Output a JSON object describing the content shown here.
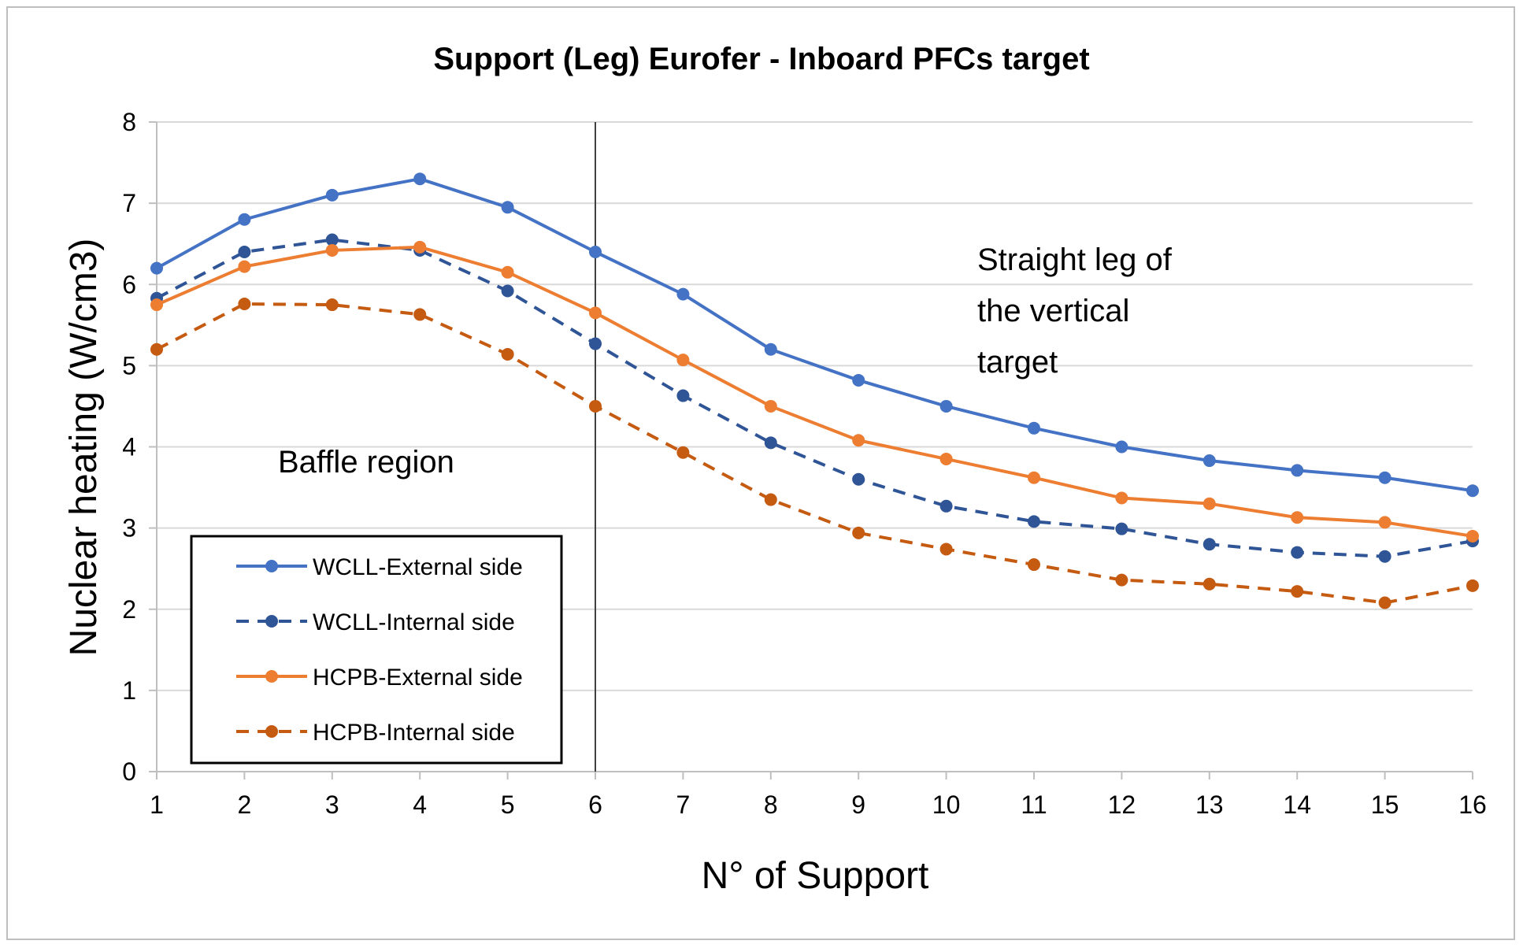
{
  "chart_data": {
    "type": "line",
    "title": "Support (Leg) Eurofer - Inboard PFCs target",
    "xlabel": "N° of Support",
    "ylabel": "Nuclear heating (W/cm3)",
    "x": [
      1,
      2,
      3,
      4,
      5,
      6,
      7,
      8,
      9,
      10,
      11,
      12,
      13,
      14,
      15,
      16
    ],
    "ylim": [
      0,
      8
    ],
    "yticks": [
      0,
      1,
      2,
      3,
      4,
      5,
      6,
      7,
      8
    ],
    "grid": "horizontal",
    "legend_position": "bottom-left",
    "series": [
      {
        "name": "WCLL-External side",
        "color": "#4472C4",
        "style": "solid",
        "values": [
          6.2,
          6.8,
          7.1,
          7.3,
          6.95,
          6.4,
          5.88,
          5.2,
          4.82,
          4.5,
          4.23,
          4.0,
          3.83,
          3.71,
          3.62,
          3.46
        ]
      },
      {
        "name": "WCLL-Internal side",
        "color": "#2F5597",
        "style": "dashed",
        "values": [
          5.83,
          6.4,
          6.55,
          6.42,
          5.92,
          5.27,
          4.63,
          4.05,
          3.6,
          3.27,
          3.08,
          2.99,
          2.8,
          2.7,
          2.65,
          2.84
        ]
      },
      {
        "name": "HCPB-External side",
        "color": "#ED7D31",
        "style": "solid",
        "values": [
          5.75,
          6.22,
          6.42,
          6.46,
          6.15,
          5.65,
          5.07,
          4.5,
          4.08,
          3.85,
          3.62,
          3.37,
          3.3,
          3.13,
          3.07,
          2.9
        ]
      },
      {
        "name": "HCPB-Internal side",
        "color": "#C55A11",
        "style": "dashed",
        "values": [
          5.2,
          5.76,
          5.75,
          5.63,
          5.14,
          4.5,
          3.93,
          3.35,
          2.94,
          2.74,
          2.55,
          2.36,
          2.31,
          2.22,
          2.08,
          2.29
        ]
      }
    ],
    "divider_x": 6,
    "annotations": [
      {
        "id": "baffle",
        "lines": [
          "Baffle region"
        ]
      },
      {
        "id": "straight",
        "lines": [
          "Straight leg of",
          "the vertical",
          "target"
        ]
      }
    ]
  }
}
